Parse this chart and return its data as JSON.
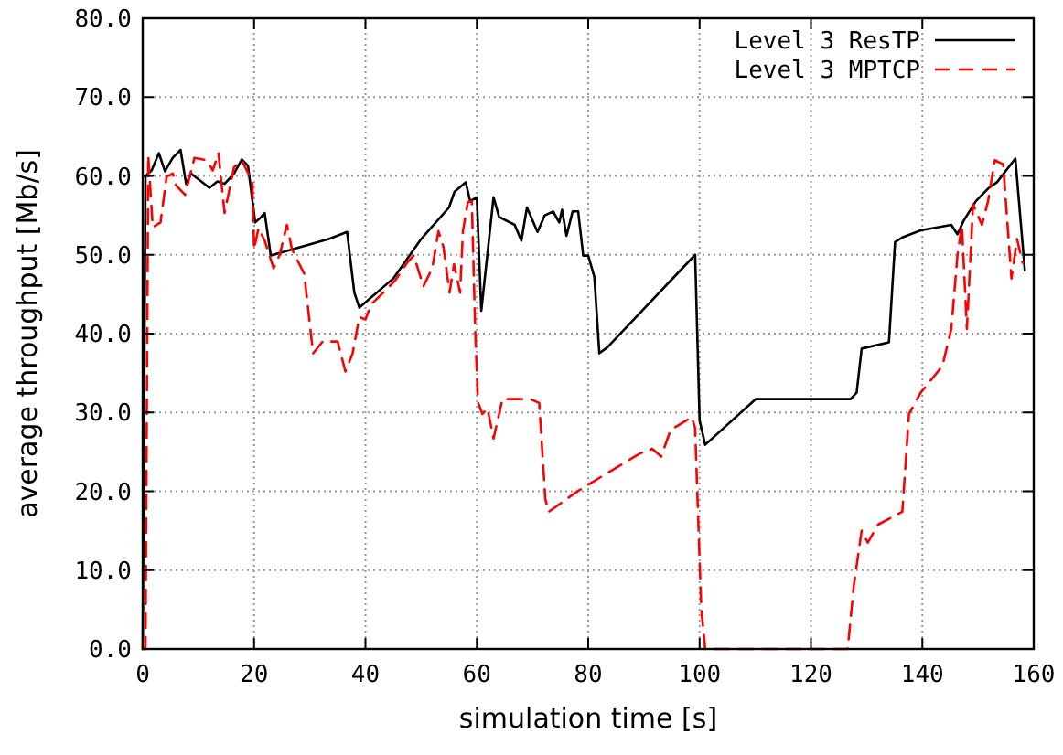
{
  "chart_data": {
    "type": "line",
    "xlabel": "simulation time [s]",
    "ylabel": "average throughput [Mb/s]",
    "xlim": [
      0,
      160
    ],
    "xticks": [
      0,
      20,
      40,
      60,
      80,
      100,
      120,
      140,
      160
    ],
    "ylim": [
      0,
      80
    ],
    "yticks": [
      {
        "value": 0,
        "label": "0.0"
      },
      {
        "value": 10,
        "label": "10.0"
      },
      {
        "value": 20,
        "label": "20.0"
      },
      {
        "value": 30,
        "label": "30.0"
      },
      {
        "value": 40,
        "label": "40.0"
      },
      {
        "value": 50,
        "label": "50.0"
      },
      {
        "value": 60,
        "label": "60.0"
      },
      {
        "value": 70,
        "label": "70.0"
      },
      {
        "value": 80,
        "label": "80.0"
      }
    ],
    "grid": true,
    "legend": "top right",
    "series": [
      {
        "name": "Level 3 ResTP",
        "color": "#000000",
        "line_style": "solid",
        "x": [
          0,
          0.5,
          1.6,
          2.9,
          4,
          5.4,
          6.8,
          7.8,
          8.7,
          12,
          13.4,
          14.7,
          16.4,
          17.8,
          18.9,
          20.2,
          21,
          21.9,
          23,
          33.4,
          36.7,
          38,
          38.9,
          45,
          50,
          55,
          56,
          58,
          58.8,
          60,
          60.8,
          63,
          64,
          66.8,
          68,
          69,
          70.9,
          72.2,
          73.7,
          74.8,
          75.3,
          76.1,
          77.2,
          78.2,
          79.1,
          80,
          81.1,
          82,
          83.5,
          99.2,
          100,
          101,
          110.1,
          127.1,
          128.2,
          129.1,
          134,
          135.1,
          136.4,
          139.7,
          145.2,
          146.3,
          147.4,
          149.6,
          151.8,
          153.4,
          156.7,
          158.4
        ],
        "values": [
          0,
          60,
          60.7,
          62.9,
          60.6,
          62.3,
          63.3,
          59,
          60.3,
          58.5,
          59.3,
          59,
          60.3,
          62.1,
          61.3,
          54.1,
          54.6,
          55.3,
          49.9,
          52,
          52.9,
          45.2,
          43.3,
          47,
          52,
          56,
          58,
          59.2,
          56.8,
          57.3,
          42.9,
          57.3,
          54.8,
          53.8,
          51.8,
          56,
          52.9,
          55,
          55.5,
          54.1,
          55.7,
          52.4,
          55.5,
          55.5,
          49.9,
          49.9,
          47.2,
          37.5,
          38.3,
          50,
          29,
          25.9,
          31.7,
          31.7,
          32.5,
          38.1,
          38.9,
          51.6,
          52.2,
          53.1,
          53.8,
          52.6,
          54.3,
          56.8,
          58.4,
          59.2,
          62.2,
          48
        ]
      },
      {
        "name": "Level 3 MPTCP",
        "color": "#ff0000",
        "line_style": "dashed",
        "x": [
          0,
          0.5,
          1,
          1.8,
          3.2,
          4.3,
          5.4,
          6,
          7.6,
          9.3,
          11.5,
          12.6,
          13.6,
          14.7,
          16.4,
          17.8,
          19.7,
          20,
          20.8,
          21.9,
          23.5,
          24.6,
          25.9,
          26.8,
          29,
          30.6,
          32.3,
          35,
          36.4,
          37.7,
          38.9,
          40,
          41,
          43.2,
          45.4,
          47.6,
          48.7,
          50.4,
          52,
          53.1,
          54,
          55.1,
          55.9,
          57,
          57.5,
          58.4,
          59.1,
          59.7,
          60.2,
          61,
          61.9,
          63,
          64.6,
          69.6,
          71.2,
          72.3,
          72.9,
          78.3,
          82.7,
          89.3,
          91.5,
          93.1,
          94.8,
          98.6,
          99.2,
          100.3,
          101,
          126.6,
          127.7,
          129.1,
          130.2,
          132.1,
          136.4,
          137.6,
          139.7,
          143.6,
          145.2,
          146.3,
          147.1,
          148,
          149.1,
          150.7,
          151.8,
          153,
          154.5,
          156,
          157,
          158
        ],
        "values": [
          0,
          0,
          62.6,
          53.5,
          54.1,
          59.9,
          60.3,
          58.8,
          57.6,
          62.3,
          62,
          60.7,
          62.9,
          55.3,
          61.1,
          62,
          59.2,
          50.7,
          53.4,
          51.8,
          48.3,
          50,
          53.8,
          50.7,
          47.6,
          37.5,
          39,
          39,
          35.2,
          37.5,
          42.1,
          41.8,
          43.7,
          45.2,
          46.8,
          49.1,
          49.9,
          46,
          48.3,
          53,
          51,
          45.2,
          48.8,
          45.2,
          53,
          56.7,
          56.8,
          40.6,
          31.3,
          29.8,
          30.5,
          26.7,
          31.7,
          31.7,
          31.2,
          19,
          17.4,
          20.1,
          22,
          24.8,
          25.4,
          24.4,
          27.8,
          29.4,
          28,
          5.1,
          0,
          0,
          8.1,
          15,
          13.5,
          15.8,
          17.4,
          29.8,
          32.5,
          35.9,
          40.6,
          49.9,
          53.8,
          40.6,
          56.4,
          53.8,
          56.8,
          62,
          61.5,
          47,
          52,
          49
        ]
      }
    ]
  }
}
